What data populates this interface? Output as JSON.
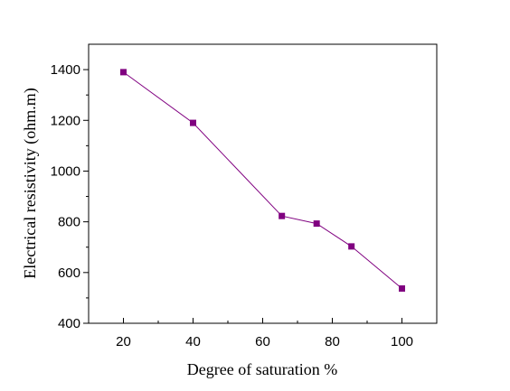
{
  "chart_data": {
    "type": "line",
    "title": "",
    "xlabel": "Degree of saturation %",
    "ylabel": "Electrical resistivity (ohm.m)",
    "xlim": [
      10,
      110
    ],
    "ylim": [
      400,
      1500
    ],
    "xticks": [
      20,
      40,
      60,
      80,
      100
    ],
    "yticks": [
      400,
      600,
      800,
      1000,
      1200,
      1400
    ],
    "xtick_labels": [
      "20",
      "40",
      "60",
      "80",
      "100"
    ],
    "ytick_labels": [
      "400",
      "600",
      "800",
      "1000",
      "1200",
      "1400"
    ],
    "grid": false,
    "legend": "none",
    "marker": "square",
    "color": "#800080",
    "series": [
      {
        "x": [
          20,
          40,
          65.5,
          75.5,
          85.5,
          100
        ],
        "y": [
          1390,
          1190,
          823,
          793,
          703,
          537
        ]
      }
    ]
  }
}
